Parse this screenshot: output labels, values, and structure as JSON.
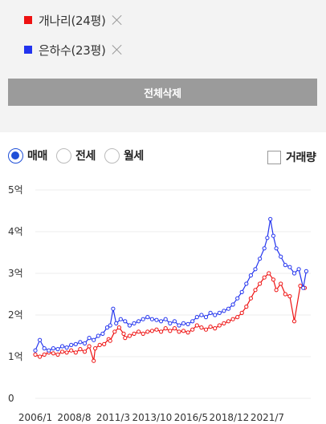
{
  "comparison_tags": [
    {
      "label": "개나리(24평)",
      "color": "#ee1111"
    },
    {
      "label": "은하수(23평)",
      "color": "#2233ee"
    }
  ],
  "delete_all_label": "전체삭제",
  "trade_types": [
    {
      "label": "매매",
      "checked": true
    },
    {
      "label": "전세",
      "checked": false
    },
    {
      "label": "월세",
      "checked": false
    }
  ],
  "volume_toggle_label": "거래량",
  "chart_data": {
    "type": "line",
    "x_range": [
      2006.0,
      2024.4
    ],
    "ylim": [
      0,
      5
    ],
    "y_ticks": [
      {
        "value": 0,
        "label": "0"
      },
      {
        "value": 1,
        "label": "1억"
      },
      {
        "value": 2,
        "label": "2억"
      },
      {
        "value": 3,
        "label": "3억"
      },
      {
        "value": 4,
        "label": "4억"
      },
      {
        "value": 5,
        "label": "5억"
      }
    ],
    "x_ticks": [
      {
        "value": 2006.0,
        "label": "2006/1"
      },
      {
        "value": 2008.6,
        "label": "2008/8"
      },
      {
        "value": 2011.2,
        "label": "2011/3"
      },
      {
        "value": 2013.8,
        "label": "2013/10"
      },
      {
        "value": 2016.4,
        "label": "2016/5"
      },
      {
        "value": 2018.95,
        "label": "2018/12"
      },
      {
        "value": 2021.5,
        "label": "2021/7"
      }
    ],
    "grid": "horizontal",
    "series": [
      {
        "color": "#ee1111",
        "points": [
          [
            2006.0,
            1.05
          ],
          [
            2006.3,
            1.0
          ],
          [
            2006.6,
            1.05
          ],
          [
            2006.9,
            1.1
          ],
          [
            2007.2,
            1.08
          ],
          [
            2007.5,
            1.05
          ],
          [
            2007.8,
            1.12
          ],
          [
            2008.1,
            1.1
          ],
          [
            2008.4,
            1.15
          ],
          [
            2008.7,
            1.1
          ],
          [
            2009.0,
            1.18
          ],
          [
            2009.3,
            1.12
          ],
          [
            2009.6,
            1.25
          ],
          [
            2009.9,
            0.9
          ],
          [
            2010.0,
            1.2
          ],
          [
            2010.3,
            1.28
          ],
          [
            2010.6,
            1.3
          ],
          [
            2010.9,
            1.42
          ],
          [
            2011.0,
            1.38
          ],
          [
            2011.3,
            1.6
          ],
          [
            2011.6,
            1.7
          ],
          [
            2011.9,
            1.55
          ],
          [
            2012.0,
            1.45
          ],
          [
            2012.3,
            1.5
          ],
          [
            2012.6,
            1.55
          ],
          [
            2012.9,
            1.6
          ],
          [
            2013.2,
            1.55
          ],
          [
            2013.5,
            1.6
          ],
          [
            2013.8,
            1.62
          ],
          [
            2014.1,
            1.65
          ],
          [
            2014.4,
            1.6
          ],
          [
            2014.7,
            1.68
          ],
          [
            2015.0,
            1.62
          ],
          [
            2015.3,
            1.68
          ],
          [
            2015.6,
            1.6
          ],
          [
            2015.9,
            1.62
          ],
          [
            2016.2,
            1.58
          ],
          [
            2016.5,
            1.65
          ],
          [
            2016.8,
            1.75
          ],
          [
            2017.1,
            1.7
          ],
          [
            2017.4,
            1.65
          ],
          [
            2017.7,
            1.72
          ],
          [
            2018.0,
            1.68
          ],
          [
            2018.3,
            1.75
          ],
          [
            2018.6,
            1.8
          ],
          [
            2018.9,
            1.85
          ],
          [
            2019.2,
            1.9
          ],
          [
            2019.5,
            1.95
          ],
          [
            2019.8,
            2.05
          ],
          [
            2020.1,
            2.2
          ],
          [
            2020.4,
            2.4
          ],
          [
            2020.7,
            2.6
          ],
          [
            2021.0,
            2.75
          ],
          [
            2021.3,
            2.9
          ],
          [
            2021.6,
            3.0
          ],
          [
            2021.9,
            2.85
          ],
          [
            2022.1,
            2.6
          ],
          [
            2022.4,
            2.75
          ],
          [
            2022.7,
            2.5
          ],
          [
            2023.0,
            2.45
          ],
          [
            2023.3,
            1.85
          ],
          [
            2023.7,
            2.7
          ],
          [
            2024.0,
            2.65
          ]
        ]
      },
      {
        "color": "#2233ee",
        "points": [
          [
            2006.0,
            1.15
          ],
          [
            2006.3,
            1.4
          ],
          [
            2006.6,
            1.2
          ],
          [
            2006.9,
            1.15
          ],
          [
            2007.2,
            1.2
          ],
          [
            2007.5,
            1.18
          ],
          [
            2007.8,
            1.25
          ],
          [
            2008.1,
            1.22
          ],
          [
            2008.4,
            1.28
          ],
          [
            2008.7,
            1.3
          ],
          [
            2009.0,
            1.35
          ],
          [
            2009.3,
            1.32
          ],
          [
            2009.6,
            1.45
          ],
          [
            2009.9,
            1.4
          ],
          [
            2010.2,
            1.5
          ],
          [
            2010.5,
            1.55
          ],
          [
            2010.8,
            1.7
          ],
          [
            2011.0,
            1.75
          ],
          [
            2011.2,
            2.15
          ],
          [
            2011.4,
            1.8
          ],
          [
            2011.7,
            1.9
          ],
          [
            2012.0,
            1.85
          ],
          [
            2012.3,
            1.75
          ],
          [
            2012.6,
            1.8
          ],
          [
            2012.9,
            1.85
          ],
          [
            2013.2,
            1.9
          ],
          [
            2013.5,
            1.95
          ],
          [
            2013.8,
            1.9
          ],
          [
            2014.1,
            1.88
          ],
          [
            2014.4,
            1.85
          ],
          [
            2014.7,
            1.9
          ],
          [
            2015.0,
            1.8
          ],
          [
            2015.3,
            1.85
          ],
          [
            2015.6,
            1.75
          ],
          [
            2015.9,
            1.8
          ],
          [
            2016.2,
            1.78
          ],
          [
            2016.5,
            1.85
          ],
          [
            2016.8,
            1.95
          ],
          [
            2017.1,
            2.0
          ],
          [
            2017.4,
            1.95
          ],
          [
            2017.7,
            2.05
          ],
          [
            2018.0,
            2.0
          ],
          [
            2018.3,
            2.05
          ],
          [
            2018.6,
            2.1
          ],
          [
            2018.9,
            2.15
          ],
          [
            2019.2,
            2.25
          ],
          [
            2019.5,
            2.4
          ],
          [
            2019.8,
            2.55
          ],
          [
            2020.1,
            2.75
          ],
          [
            2020.4,
            2.95
          ],
          [
            2020.7,
            3.1
          ],
          [
            2021.0,
            3.35
          ],
          [
            2021.3,
            3.6
          ],
          [
            2021.5,
            3.85
          ],
          [
            2021.7,
            4.3
          ],
          [
            2021.9,
            3.9
          ],
          [
            2022.1,
            3.6
          ],
          [
            2022.4,
            3.4
          ],
          [
            2022.7,
            3.2
          ],
          [
            2023.0,
            3.15
          ],
          [
            2023.3,
            3.0
          ],
          [
            2023.6,
            3.1
          ],
          [
            2023.9,
            2.65
          ],
          [
            2024.1,
            3.05
          ]
        ]
      }
    ]
  }
}
